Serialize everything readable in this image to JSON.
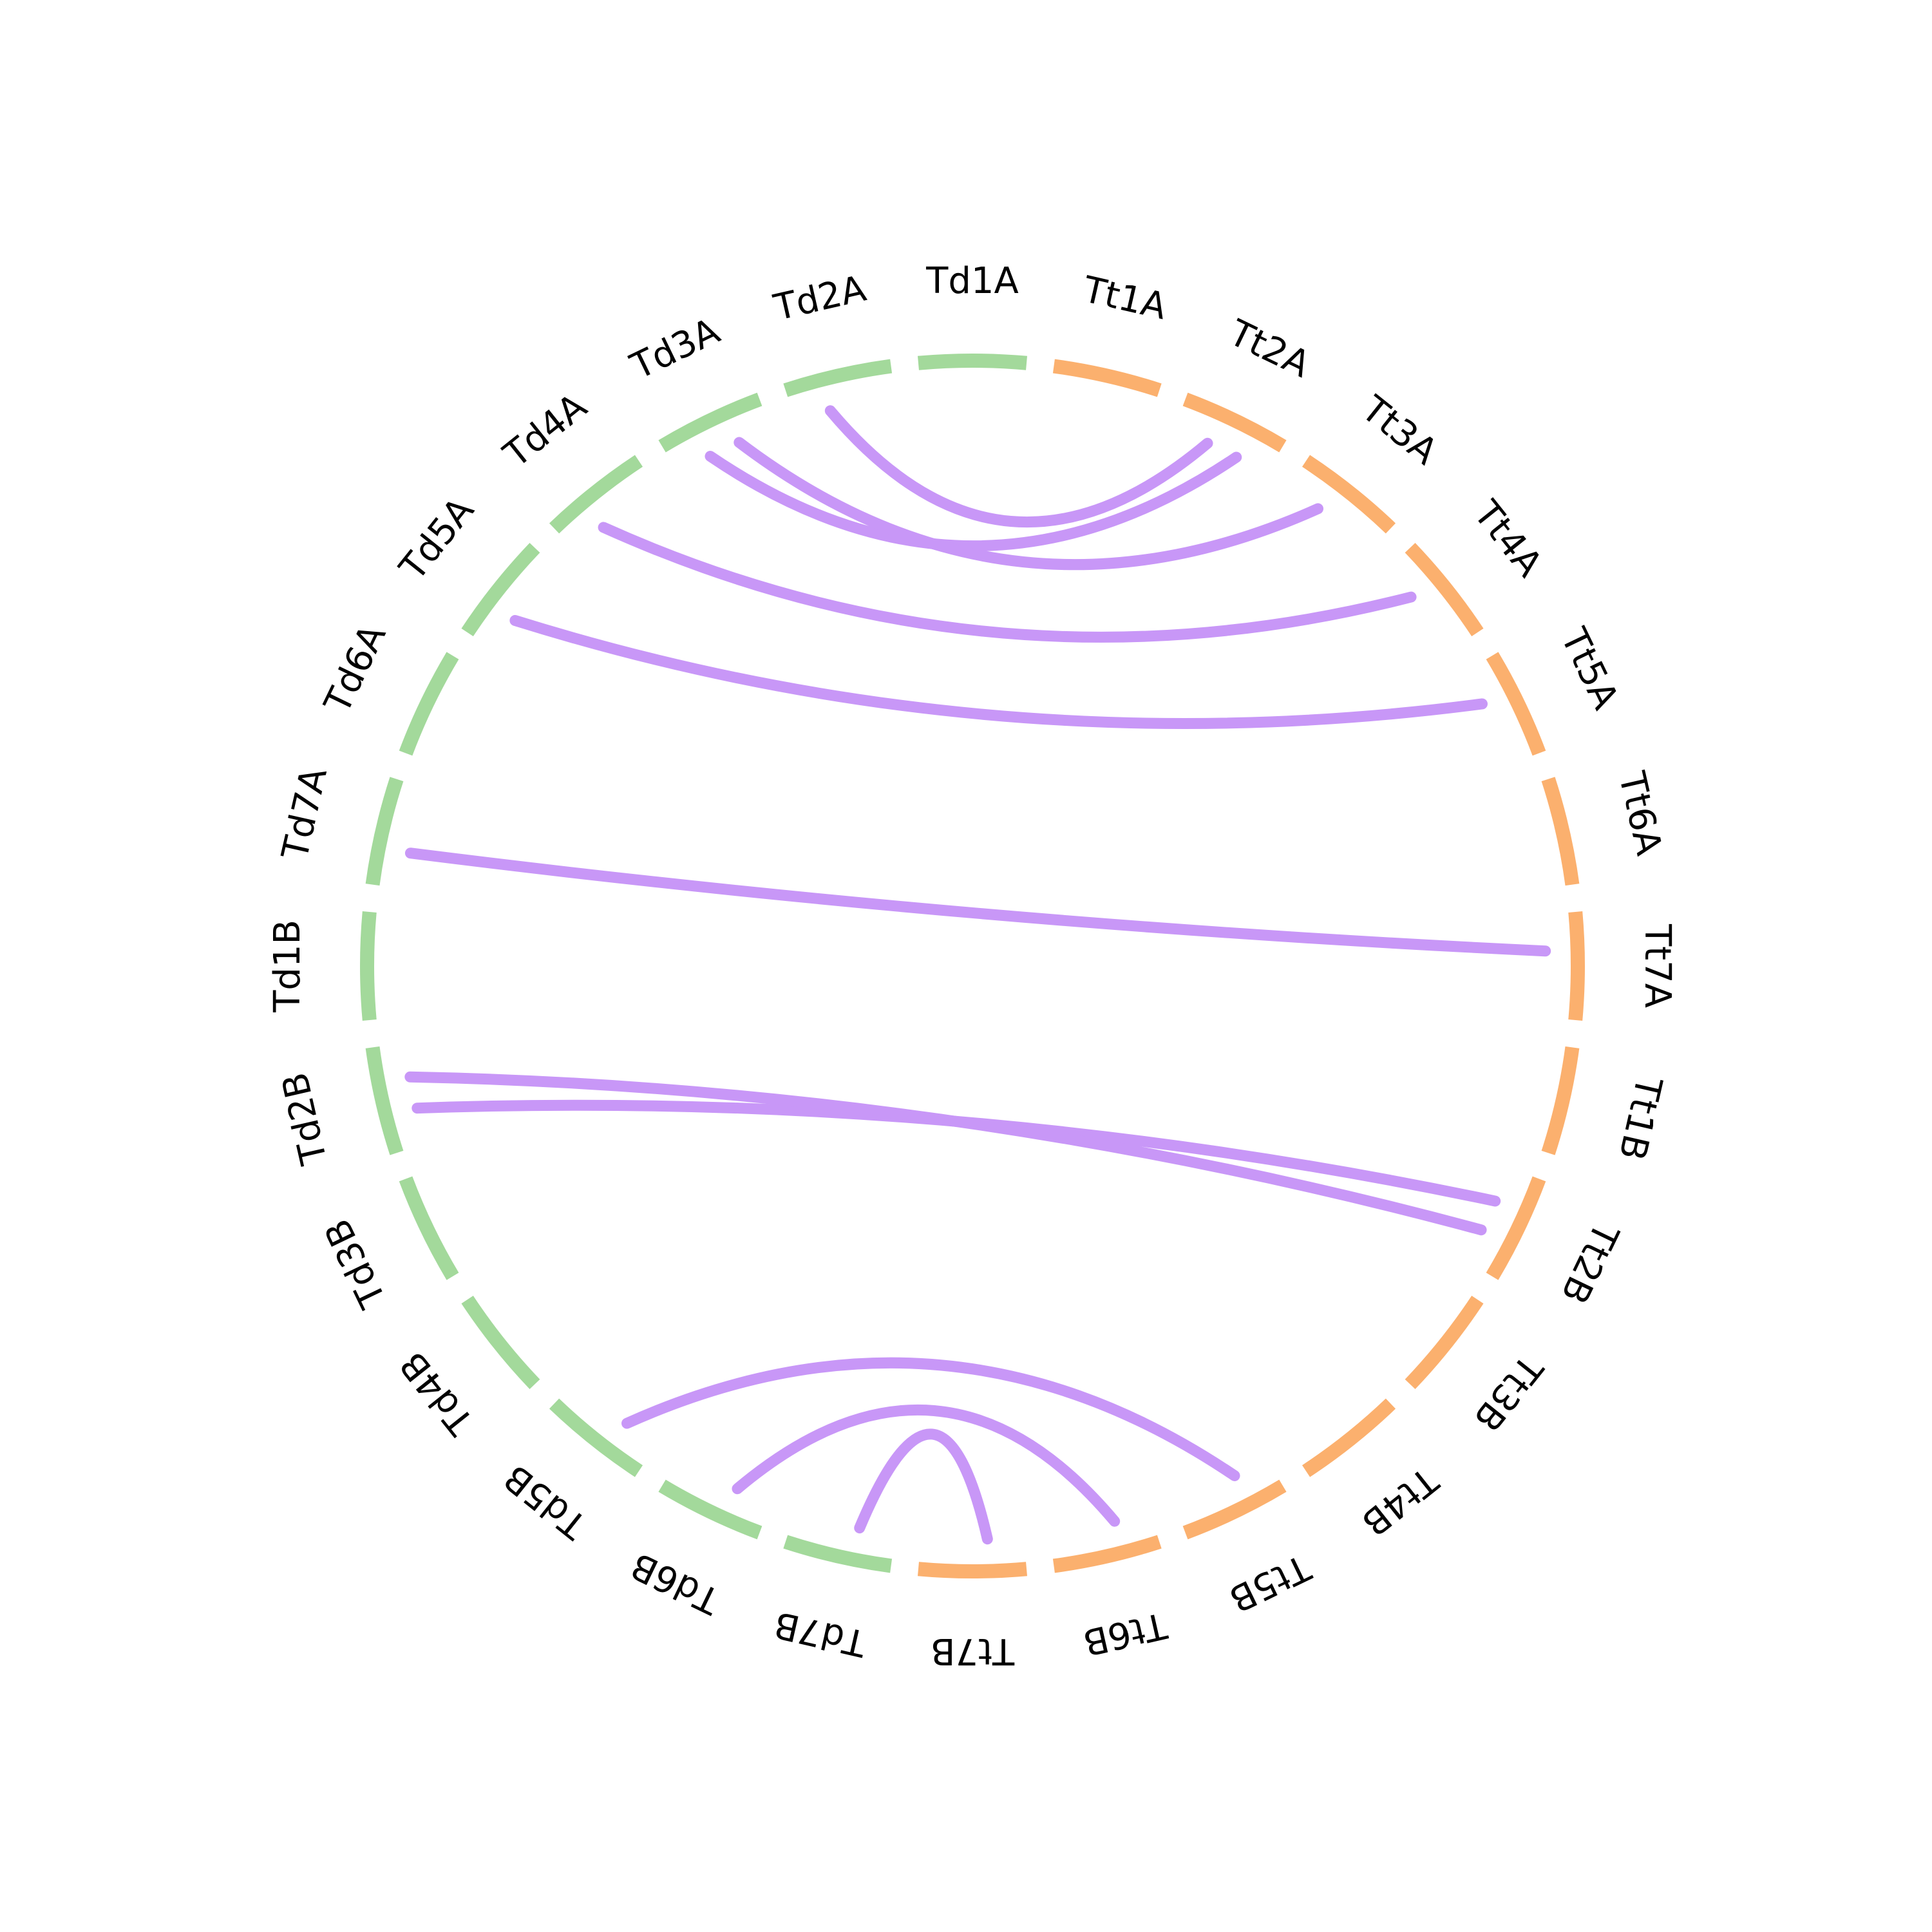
{
  "diagram": {
    "type": "circos",
    "colors": {
      "Td": "#a3d99b",
      "Tt": "#fbb06e",
      "link": "#c897f7"
    },
    "segments": [
      {
        "name": "Td1A",
        "group": "Td"
      },
      {
        "name": "Tt1A",
        "group": "Tt"
      },
      {
        "name": "Tt2A",
        "group": "Tt"
      },
      {
        "name": "Tt3A",
        "group": "Tt"
      },
      {
        "name": "Tt4A",
        "group": "Tt"
      },
      {
        "name": "Tt5A",
        "group": "Tt"
      },
      {
        "name": "Tt6A",
        "group": "Tt"
      },
      {
        "name": "Tt7A",
        "group": "Tt"
      },
      {
        "name": "Tt1B",
        "group": "Tt"
      },
      {
        "name": "Tt2B",
        "group": "Tt"
      },
      {
        "name": "Tt3B",
        "group": "Tt"
      },
      {
        "name": "Tt4B",
        "group": "Tt"
      },
      {
        "name": "Tt5B",
        "group": "Tt"
      },
      {
        "name": "Tt6B",
        "group": "Tt"
      },
      {
        "name": "Tt7B",
        "group": "Tt"
      },
      {
        "name": "Td7B",
        "group": "Td"
      },
      {
        "name": "Td6B",
        "group": "Td"
      },
      {
        "name": "Td5B",
        "group": "Td"
      },
      {
        "name": "Td4B",
        "group": "Td"
      },
      {
        "name": "Td3B",
        "group": "Td"
      },
      {
        "name": "Td2B",
        "group": "Td"
      },
      {
        "name": "Td1B",
        "group": "Td"
      },
      {
        "name": "Td7A",
        "group": "Td"
      },
      {
        "name": "Td6A",
        "group": "Td"
      },
      {
        "name": "Td5A",
        "group": "Td"
      },
      {
        "name": "Td4A",
        "group": "Td"
      },
      {
        "name": "Td3A",
        "group": "Td"
      },
      {
        "name": "Td2A",
        "group": "Td"
      }
    ],
    "links": [
      {
        "source": "Td2A",
        "target": "Tt2A"
      },
      {
        "source": "Td3A",
        "target": "Tt2A"
      },
      {
        "source": "Td3A",
        "target": "Tt3A"
      },
      {
        "source": "Td4A",
        "target": "Tt4A"
      },
      {
        "source": "Td5A",
        "target": "Tt5A"
      },
      {
        "source": "Td7A",
        "target": "Tt7A"
      },
      {
        "source": "Td2B",
        "target": "Tt2B"
      },
      {
        "source": "Td2B",
        "target": "Tt2B"
      },
      {
        "source": "Td5B",
        "target": "Tt5B"
      },
      {
        "source": "Td6B",
        "target": "Tt6B"
      },
      {
        "source": "Td7B",
        "target": "Tt7B"
      }
    ]
  }
}
